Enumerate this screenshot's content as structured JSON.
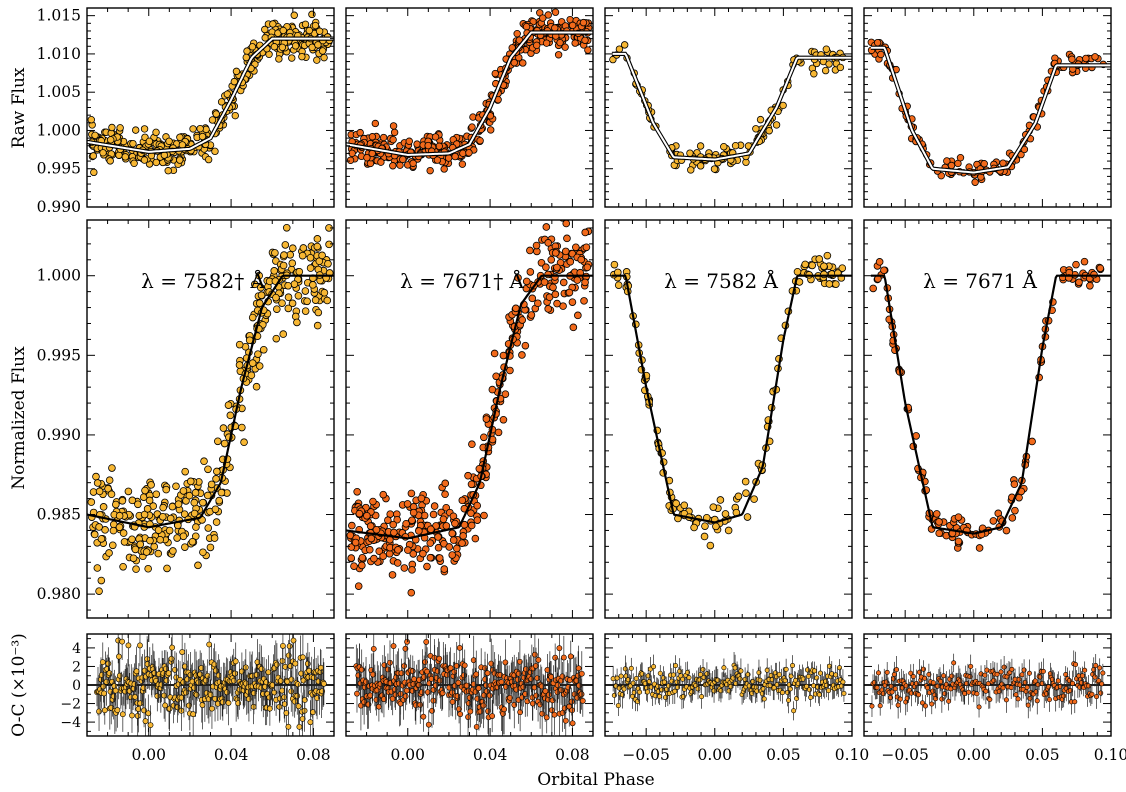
{
  "figure": {
    "xlabel": "Orbital Phase",
    "row_labels": [
      "Raw Flux",
      "Normalized Flux",
      "O-C (×10⁻³)"
    ],
    "colors": {
      "yellow": "#f7b733",
      "orange": "#f26a1b",
      "model_line": "#000000",
      "model_white": "#ffffff",
      "axes": "#000000"
    }
  },
  "chart_data": [
    {
      "type": "scatter",
      "panel": "raw-1",
      "ylabel": "Raw Flux",
      "ylim": [
        0.99,
        1.016
      ],
      "xlim": [
        -0.03,
        0.09
      ],
      "yticks": [
        "0.990",
        "0.995",
        "1.000",
        "1.005",
        "1.010",
        "1.015"
      ],
      "xticks": [
        "0.00",
        "0.04",
        "0.08"
      ],
      "series": [
        {
          "color": "#f7b733",
          "model": {
            "x": [
              -0.03,
              0.0,
              0.02,
              0.03,
              0.04,
              0.05,
              0.06,
              0.09
            ],
            "y": [
              0.9985,
              0.9972,
              0.9976,
              0.999,
              1.004,
              1.0095,
              1.012,
              1.012
            ]
          }
        }
      ]
    },
    {
      "type": "scatter",
      "panel": "raw-2",
      "ylim": [
        0.99,
        1.016
      ],
      "xlim": [
        -0.03,
        0.09
      ],
      "xticks": [
        "0.00",
        "0.04",
        "0.08"
      ],
      "series": [
        {
          "color": "#f26a1b",
          "model": {
            "x": [
              -0.03,
              0.0,
              0.02,
              0.03,
              0.04,
              0.05,
              0.06,
              0.09
            ],
            "y": [
              0.9982,
              0.9968,
              0.997,
              0.9982,
              1.003,
              1.0095,
              1.0128,
              1.0128
            ]
          }
        }
      ]
    },
    {
      "type": "scatter",
      "panel": "raw-3",
      "ylim": [
        0.99,
        1.016
      ],
      "xlim": [
        -0.08,
        0.1
      ],
      "xticks": [
        "−0.05",
        "0.00",
        "0.05",
        "0.10"
      ],
      "series": [
        {
          "color": "#f7b733",
          "model": {
            "x": [
              -0.075,
              -0.065,
              -0.045,
              -0.03,
              0.0,
              0.025,
              0.045,
              0.06,
              0.1
            ],
            "y": [
              1.01,
              1.01,
              1.001,
              0.9965,
              0.9962,
              0.997,
              1.003,
              1.0095,
              1.0095
            ]
          }
        }
      ]
    },
    {
      "type": "scatter",
      "panel": "raw-4",
      "ylim": [
        0.99,
        1.016
      ],
      "xlim": [
        -0.08,
        0.1
      ],
      "xticks": [
        "−0.05",
        "0.00",
        "0.05",
        "0.10"
      ],
      "series": [
        {
          "color": "#f26a1b",
          "model": {
            "x": [
              -0.075,
              -0.065,
              -0.045,
              -0.03,
              0.0,
              0.025,
              0.045,
              0.06,
              0.1
            ],
            "y": [
              1.0108,
              1.0108,
              1.0,
              0.995,
              0.9945,
              0.9952,
              1.001,
              1.0085,
              1.0085
            ]
          }
        }
      ]
    },
    {
      "type": "scatter",
      "panel": "norm-1",
      "ylabel": "Normalized Flux",
      "label": "λ = 7582† Å",
      "ylim": [
        0.9785,
        1.0035
      ],
      "xlim": [
        -0.03,
        0.09
      ],
      "yticks": [
        "0.980",
        "0.985",
        "0.990",
        "0.995",
        "1.000"
      ],
      "xticks": [
        "0.00",
        "0.04",
        "0.08"
      ],
      "series": [
        {
          "color": "#f7b733",
          "model": {
            "x": [
              -0.03,
              0.0,
              0.025,
              0.035,
              0.045,
              0.055,
              0.065,
              0.09
            ],
            "y": [
              0.985,
              0.9842,
              0.9848,
              0.987,
              0.993,
              0.998,
              1.0,
              1.0
            ]
          }
        }
      ]
    },
    {
      "type": "scatter",
      "panel": "norm-2",
      "label": "λ = 7671† Å",
      "ylim": [
        0.9785,
        1.0035
      ],
      "xlim": [
        -0.03,
        0.09
      ],
      "xticks": [
        "0.00",
        "0.04",
        "0.08"
      ],
      "series": [
        {
          "color": "#f26a1b",
          "model": {
            "x": [
              -0.03,
              0.0,
              0.025,
              0.035,
              0.045,
              0.055,
              0.065,
              0.09
            ],
            "y": [
              0.984,
              0.9835,
              0.9842,
              0.987,
              0.993,
              0.9982,
              1.0,
              1.0
            ]
          }
        }
      ]
    },
    {
      "type": "scatter",
      "panel": "norm-3",
      "label": "λ = 7582 Å",
      "ylim": [
        0.9785,
        1.0035
      ],
      "xlim": [
        -0.08,
        0.1
      ],
      "xticks": [
        "−0.05",
        "0.00",
        "0.05",
        "0.10"
      ],
      "series": [
        {
          "color": "#f7b733",
          "model": {
            "x": [
              -0.075,
              -0.065,
              -0.05,
              -0.03,
              0.0,
              0.02,
              0.035,
              0.05,
              0.06,
              0.1
            ],
            "y": [
              1.0,
              1.0,
              0.993,
              0.985,
              0.9845,
              0.985,
              0.988,
              0.996,
              1.0,
              1.0
            ]
          }
        }
      ]
    },
    {
      "type": "scatter",
      "panel": "norm-4",
      "label": "λ = 7671 Å",
      "ylim": [
        0.9785,
        1.0035
      ],
      "xlim": [
        -0.08,
        0.1
      ],
      "xticks": [
        "−0.05",
        "0.00",
        "0.05",
        "0.10"
      ],
      "series": [
        {
          "color": "#f26a1b",
          "model": {
            "x": [
              -0.075,
              -0.065,
              -0.05,
              -0.03,
              0.0,
              0.02,
              0.035,
              0.05,
              0.06,
              0.1
            ],
            "y": [
              1.0,
              1.0,
              0.992,
              0.9842,
              0.9838,
              0.9842,
              0.987,
              0.9955,
              1.0,
              1.0
            ]
          }
        }
      ]
    },
    {
      "type": "scatter",
      "panel": "oc-1",
      "ylabel": "O-C (×10⁻³)",
      "ylim": [
        -5.5,
        5.5
      ],
      "xlim": [
        -0.03,
        0.09
      ],
      "yticks": [
        "−4",
        "−2",
        "0",
        "2",
        "4"
      ],
      "xticks": [
        "0.00",
        "0.04",
        "0.08"
      ],
      "series": [
        {
          "color": "#f7b733",
          "scatter_sd": 1.7
        }
      ]
    },
    {
      "type": "scatter",
      "panel": "oc-2",
      "ylim": [
        -5.5,
        5.5
      ],
      "xlim": [
        -0.03,
        0.09
      ],
      "xticks": [
        "0.00",
        "0.04",
        "0.08"
      ],
      "series": [
        {
          "color": "#f26a1b",
          "scatter_sd": 1.6
        }
      ]
    },
    {
      "type": "scatter",
      "panel": "oc-3",
      "ylim": [
        -5.5,
        5.5
      ],
      "xlim": [
        -0.08,
        0.1
      ],
      "xticks": [
        "−0.05",
        "0.00",
        "0.05",
        "0.10"
      ],
      "series": [
        {
          "color": "#f7b733",
          "scatter_sd": 0.9
        }
      ]
    },
    {
      "type": "scatter",
      "panel": "oc-4",
      "ylim": [
        -5.5,
        5.5
      ],
      "xlim": [
        -0.08,
        0.1
      ],
      "xticks": [
        "−0.05",
        "0.00",
        "0.05",
        "0.10"
      ],
      "series": [
        {
          "color": "#f26a1b",
          "scatter_sd": 1.0
        }
      ]
    }
  ]
}
